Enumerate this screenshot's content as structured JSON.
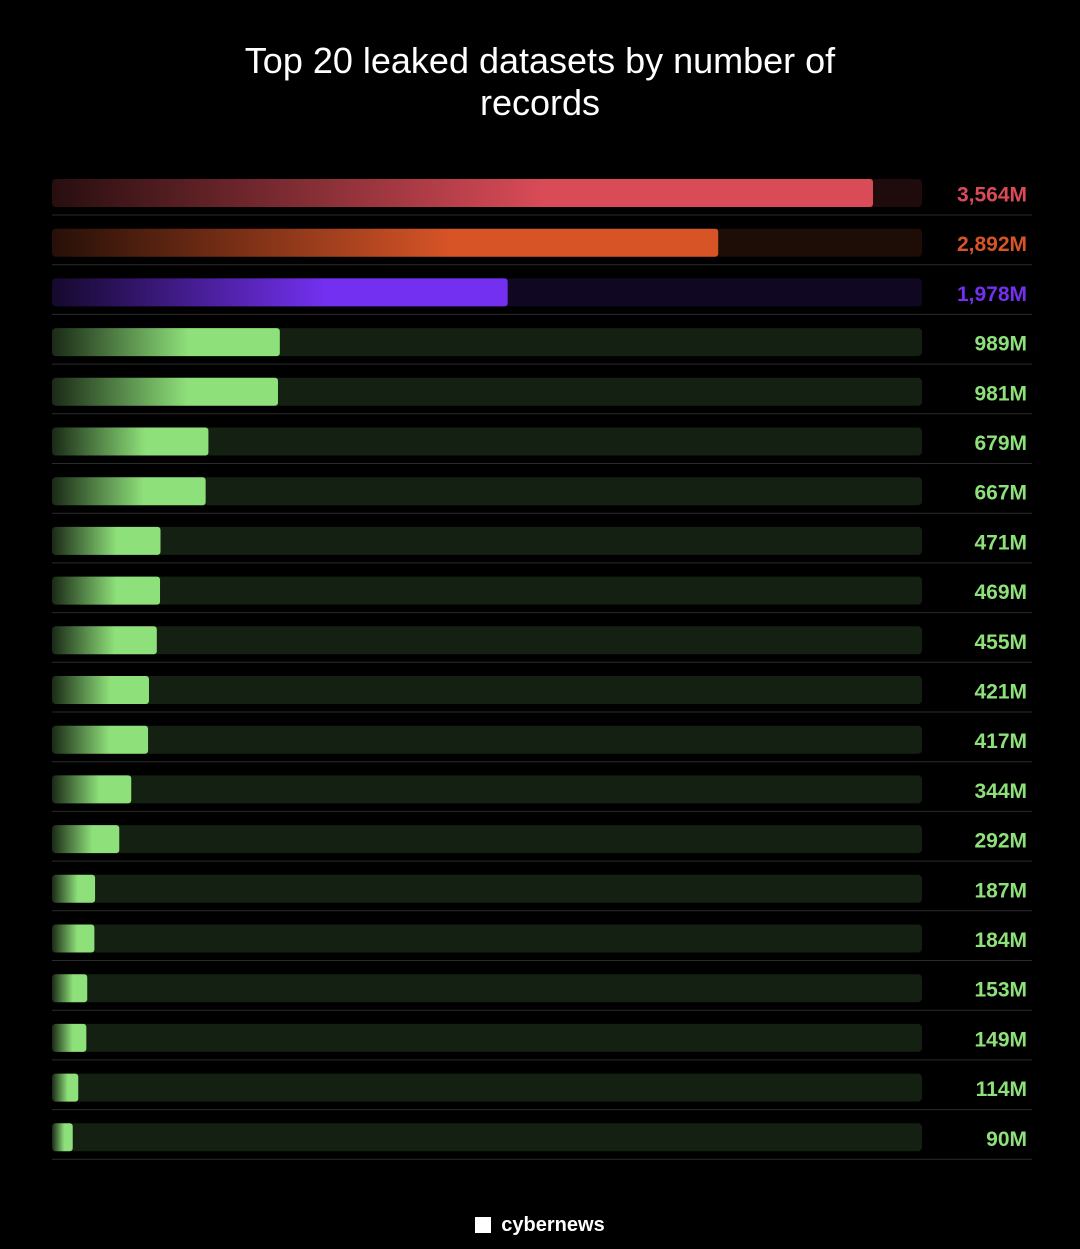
{
  "chart_data": {
    "type": "bar",
    "title": "Top 20 leaked datasets by number of records",
    "values": [
      3564,
      2892,
      1978,
      989,
      981,
      679,
      667,
      471,
      469,
      455,
      421,
      417,
      344,
      292,
      187,
      184,
      153,
      149,
      114,
      90
    ],
    "value_labels": [
      "3,564M",
      "2,892M",
      "1,978M",
      "989M",
      "981M",
      "679M",
      "667M",
      "471M",
      "469M",
      "455M",
      "421M",
      "417M",
      "344M",
      "292M",
      "187M",
      "184M",
      "153M",
      "149M",
      "114M",
      "90M"
    ],
    "colors": [
      "#d94b57",
      "#d75427",
      "#7330f0",
      "#8ee07a",
      "#8ee07a",
      "#8ee07a",
      "#8ee07a",
      "#8ee07a",
      "#8ee07a",
      "#8ee07a",
      "#8ee07a",
      "#8ee07a",
      "#8ee07a",
      "#8ee07a",
      "#8ee07a",
      "#8ee07a",
      "#8ee07a",
      "#8ee07a",
      "#8ee07a",
      "#8ee07a"
    ],
    "brand": "cybernews"
  }
}
